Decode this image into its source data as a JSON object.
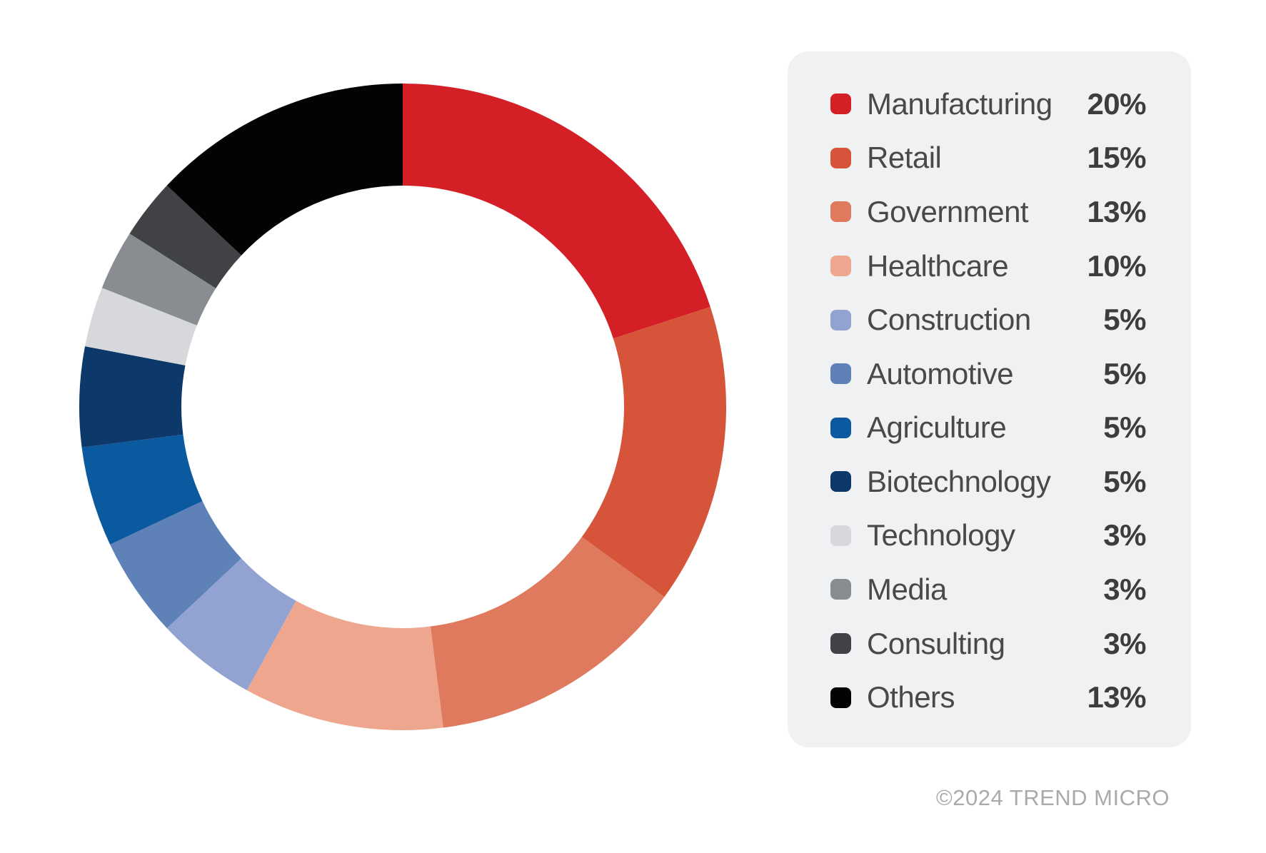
{
  "chart_data": {
    "type": "donut",
    "title": "",
    "legend_position": "right",
    "start_angle_deg": 0,
    "direction": "clockwise",
    "inner_radius_ratio": 0.684,
    "categories": [
      "Manufacturing",
      "Retail",
      "Government",
      "Healthcare",
      "Construction",
      "Automotive",
      "Agriculture",
      "Biotechnology",
      "Technology",
      "Media",
      "Consulting",
      "Others"
    ],
    "values": [
      20,
      15,
      13,
      10,
      5,
      5,
      5,
      5,
      3,
      3,
      3,
      13
    ],
    "labels": [
      "20%",
      "15%",
      "13%",
      "10%",
      "5%",
      "5%",
      "5%",
      "5%",
      "3%",
      "3%",
      "3%",
      "13%"
    ],
    "colors": [
      "#d51f26",
      "#d65439",
      "#e07a5e",
      "#eea78e",
      "#92a3d1",
      "#5e82b8",
      "#0b5aa0",
      "#0c3969",
      "#d7d8db",
      "#898d92",
      "#404245",
      "#030303"
    ]
  },
  "legend": {
    "background": "#f0f1f2"
  },
  "footer": {
    "copyright": "©2024 TREND MICRO"
  }
}
